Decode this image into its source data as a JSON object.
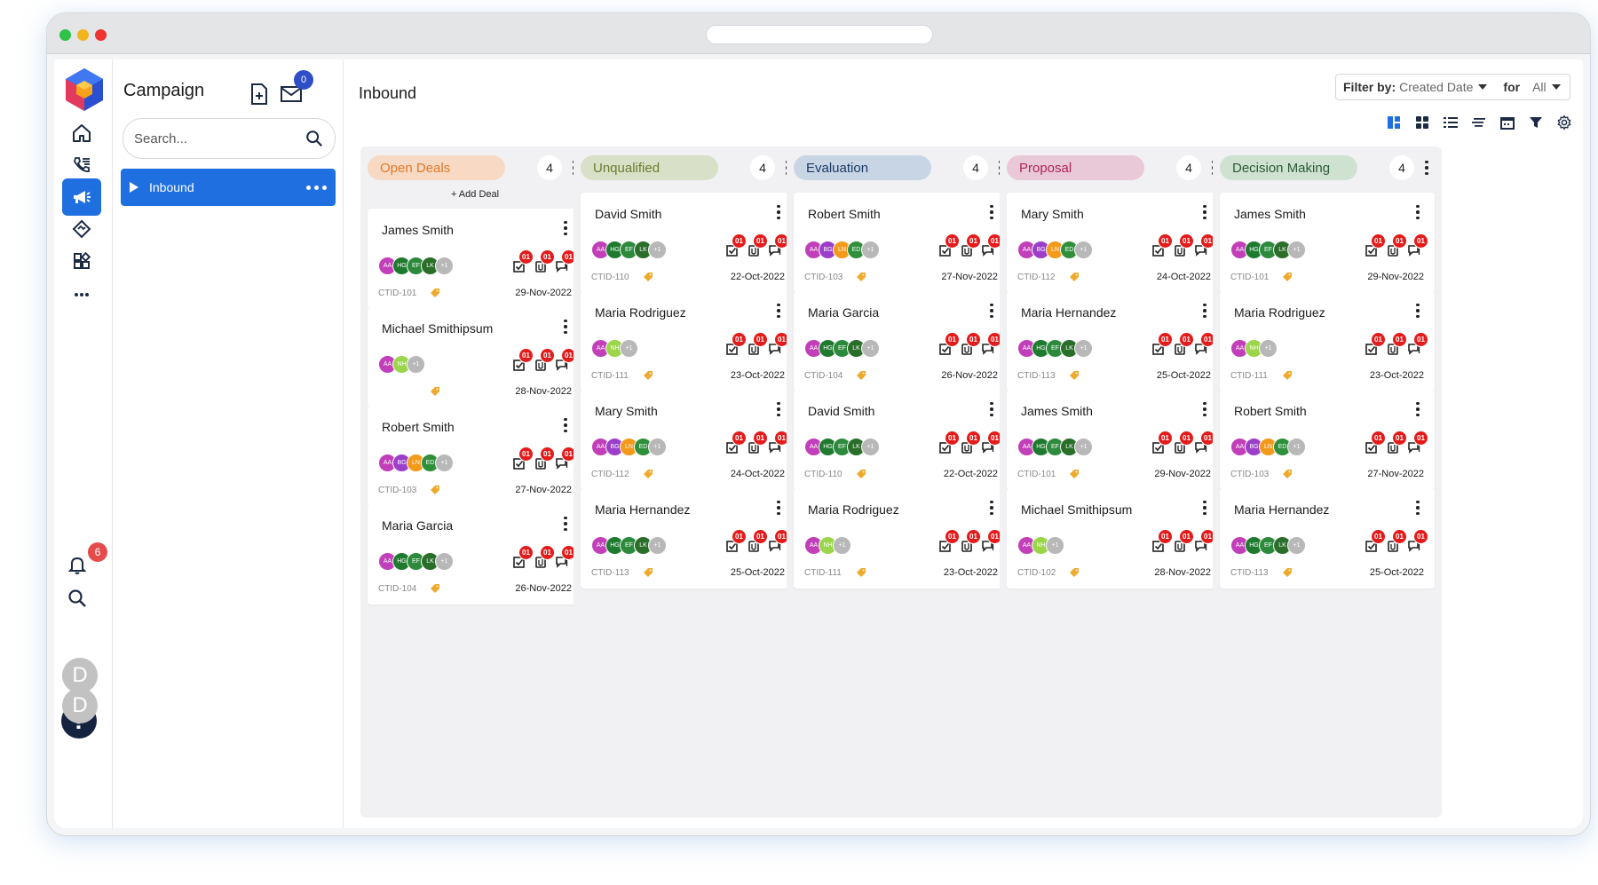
{
  "app": {
    "title": "Campaign"
  },
  "mail_count": "0",
  "search": {
    "placeholder": "Search..."
  },
  "nav": {
    "selected": "Inbound"
  },
  "page": {
    "title": "Inbound"
  },
  "notifications": {
    "count": "6"
  },
  "avatars": {
    "user1": "D",
    "user2": "D"
  },
  "filter": {
    "label": "Filter by:",
    "value": "Created Date",
    "for_label": "for",
    "for_value": "All"
  },
  "add_deal": "+ Add Deal",
  "columns": [
    {
      "title": "Open Deals",
      "count": "4",
      "color": "#f8d9c3",
      "text": "#e07a2b",
      "cards": [
        {
          "name": "James Smith",
          "ctid": "CTID-101",
          "date": "29-Nov-2022",
          "avatars": [
            "AA",
            "HG",
            "EF",
            "LK",
            "+1"
          ]
        },
        {
          "name": "Michael Smithipsum",
          "ctid": "",
          "date": "28-Nov-2022",
          "avatars": [
            "AA",
            "NH",
            "+1"
          ]
        },
        {
          "name": "Robert Smith",
          "ctid": "CTID-103",
          "date": "27-Nov-2022",
          "avatars": [
            "AA",
            "BG",
            "LN",
            "ED",
            "+1"
          ]
        },
        {
          "name": "Maria Garcia",
          "ctid": "CTID-104",
          "date": "26-Nov-2022",
          "avatars": [
            "AA",
            "HG",
            "EF",
            "LK",
            "+1"
          ]
        }
      ]
    },
    {
      "title": "Unqualified",
      "count": "4",
      "color": "#d9e0c8",
      "text": "#6c7c2c",
      "cards": [
        {
          "name": "David Smith",
          "ctid": "CTID-110",
          "date": "22-Oct-2022",
          "avatars": [
            "AA",
            "HG",
            "EF",
            "LK",
            "+1"
          ]
        },
        {
          "name": "Maria Rodriguez",
          "ctid": "CTID-111",
          "date": "23-Oct-2022",
          "avatars": [
            "AA",
            "NH",
            "+1"
          ]
        },
        {
          "name": "Mary Smith",
          "ctid": "CTID-112",
          "date": "24-Oct-2022",
          "avatars": [
            "AA",
            "BG",
            "LN",
            "ED",
            "+1"
          ]
        },
        {
          "name": "Maria Hernandez",
          "ctid": "CTID-113",
          "date": "25-Oct-2022",
          "avatars": [
            "AA",
            "HG",
            "EF",
            "LK",
            "+1"
          ]
        }
      ]
    },
    {
      "title": "Evaluation",
      "count": "4",
      "color": "#c8d5e5",
      "text": "#1c3b63",
      "cards": [
        {
          "name": "Robert Smith",
          "ctid": "CTID-103",
          "date": "27-Nov-2022",
          "avatars": [
            "AA",
            "BG",
            "LN",
            "ED",
            "+1"
          ]
        },
        {
          "name": "Maria Garcia",
          "ctid": "CTID-104",
          "date": "26-Nov-2022",
          "avatars": [
            "AA",
            "HG",
            "EF",
            "LK",
            "+1"
          ]
        },
        {
          "name": "David Smith",
          "ctid": "CTID-110",
          "date": "22-Oct-2022",
          "avatars": [
            "AA",
            "HG",
            "EF",
            "LK",
            "+1"
          ]
        },
        {
          "name": "Maria Rodriguez",
          "ctid": "CTID-111",
          "date": "23-Oct-2022",
          "avatars": [
            "AA",
            "NH",
            "+1"
          ]
        }
      ]
    },
    {
      "title": "Proposal",
      "count": "4",
      "color": "#e9c8d8",
      "text": "#b0245a",
      "cards": [
        {
          "name": "Mary Smith",
          "ctid": "CTID-112",
          "date": "24-Oct-2022",
          "avatars": [
            "AA",
            "BG",
            "LN",
            "ED",
            "+1"
          ]
        },
        {
          "name": "Maria Hernandez",
          "ctid": "CTID-113",
          "date": "25-Oct-2022",
          "avatars": [
            "AA",
            "HG",
            "EF",
            "LK",
            "+1"
          ]
        },
        {
          "name": "James Smith",
          "ctid": "CTID-101",
          "date": "29-Nov-2022",
          "avatars": [
            "AA",
            "HG",
            "EF",
            "LK",
            "+1"
          ]
        },
        {
          "name": "Michael Smithipsum",
          "ctid": "CTID-102",
          "date": "28-Nov-2022",
          "avatars": [
            "AA",
            "NH",
            "+1"
          ]
        }
      ]
    },
    {
      "title": "Decision Making",
      "count": "4",
      "color": "#cfe2d2",
      "text": "#2b5a34",
      "cards": [
        {
          "name": "James Smith",
          "ctid": "CTID-101",
          "date": "29-Nov-2022",
          "avatars": [
            "AA",
            "HG",
            "EF",
            "LK",
            "+1"
          ]
        },
        {
          "name": "Maria Rodriguez",
          "ctid": "CTID-111",
          "date": "23-Oct-2022",
          "avatars": [
            "AA",
            "NH",
            "+1"
          ]
        },
        {
          "name": "Robert Smith",
          "ctid": "CTID-103",
          "date": "27-Nov-2022",
          "avatars": [
            "AA",
            "BG",
            "LN",
            "ED",
            "+1"
          ]
        },
        {
          "name": "Maria Hernandez",
          "ctid": "CTID-113",
          "date": "25-Oct-2022",
          "avatars": [
            "AA",
            "HG",
            "EF",
            "LK",
            "+1"
          ]
        }
      ]
    }
  ],
  "badge_value": "01",
  "avatar_colors": {
    "AA": "#c13fb8",
    "HG": "#1e7a2e",
    "EF": "#2d8a3c",
    "LK": "#2a6e2a",
    "BG": "#9b3fc9",
    "LN": "#f39a1b",
    "ED": "#2f8f3b",
    "NH": "#9bd54a",
    "+1": "#b8b8b8"
  }
}
